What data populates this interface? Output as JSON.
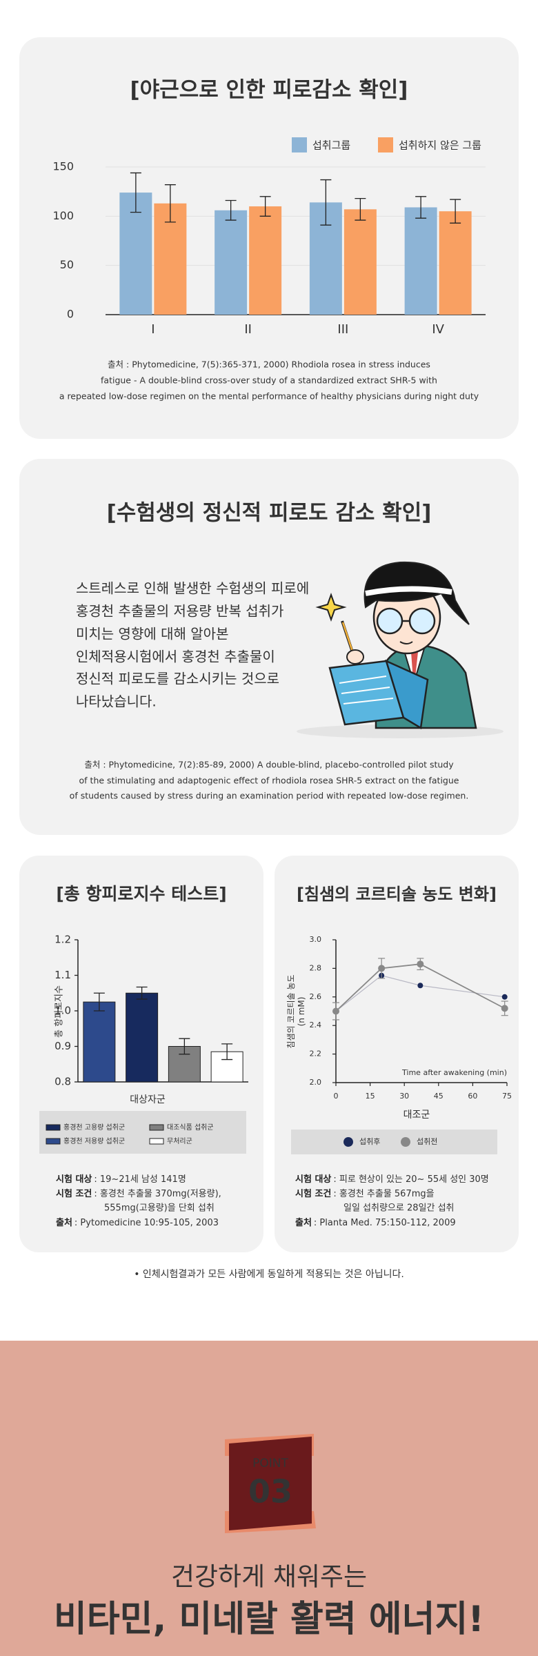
{
  "chart_data": [
    {
      "type": "bar",
      "title": "[야근으로 인한 피로감소 확인]",
      "categories": [
        "I",
        "II",
        "III",
        "IV"
      ],
      "series": [
        {
          "name": "섭취그룹",
          "color": "#8db4d6",
          "values": [
            124,
            106,
            114,
            109
          ],
          "errors": [
            20,
            10,
            23,
            11
          ]
        },
        {
          "name": "섭취하지 않은 그룹",
          "color": "#f9a062",
          "values": [
            113,
            110,
            107,
            105
          ],
          "errors": [
            19,
            10,
            11,
            12
          ]
        }
      ],
      "ylim": [
        0,
        150
      ],
      "yticks": [
        0,
        50,
        100,
        150
      ],
      "grid": true
    },
    {
      "type": "bar",
      "title": "[총 항피로지수 테스트]",
      "y_label": "총 항피로지수",
      "x_label": "대상자군",
      "series": [
        {
          "name": "홍경천 저용량 섭취군",
          "color": "#2d4a8c",
          "values": [
            1.025
          ],
          "errors": [
            0.025
          ]
        },
        {
          "name": "홍경천 고용량 섭취군",
          "color": "#172a5e",
          "values": [
            1.05
          ],
          "errors": [
            0.017
          ]
        },
        {
          "name": "대조식품 섭취군",
          "color": "#808080",
          "values": [
            0.9
          ],
          "errors": [
            0.022
          ]
        },
        {
          "name": "무처리군",
          "color": "#ffffff",
          "values": [
            0.885
          ],
          "errors": [
            0.022
          ]
        }
      ],
      "ylim": [
        0.8,
        1.2
      ],
      "yticks": [
        0.8,
        0.9,
        {
          "value": 1,
          "label": "1.0"
        },
        1.1,
        1.2
      ]
    },
    {
      "type": "line",
      "title": "[침샘의 코르티솔 농도 변화]",
      "y_label": [
        "침샘의 코르티솔 농도",
        "(n mM)"
      ],
      "x_label": "대조군",
      "annotation": "Time after awakening (min)",
      "xlim": [
        0,
        75
      ],
      "xticks": [
        0,
        15,
        30,
        45,
        60,
        75
      ],
      "ylim": [
        2,
        3
      ],
      "yticks": [
        {
          "value": 2,
          "label": "2.0"
        },
        2.2,
        2.4,
        2.6,
        2.8,
        {
          "value": 3,
          "label": "3.0"
        }
      ],
      "series": [
        {
          "name": "섭취후",
          "color": "#1b2a5a",
          "x": [
            0,
            20,
            37,
            74
          ],
          "values": [
            2.5,
            2.75,
            2.68,
            2.6
          ]
        },
        {
          "name": "섭취전",
          "color": "#888888",
          "x": [
            0,
            20,
            37,
            74
          ],
          "values": [
            2.5,
            2.8,
            2.83,
            2.52
          ],
          "errors": [
            0.06,
            0.07,
            0.04,
            0.05
          ]
        }
      ]
    }
  ],
  "card1": {
    "source": [
      "출처 : Phytomedicine, 7(5):365-371, 2000) Rhodiola rosea in stress induces",
      "fatigue -  A double-blind cross-over study of a standardized extract SHR-5 with",
      "a repeated low-dose regimen on the mental performance of healthy physicians during night duty"
    ]
  },
  "card2": {
    "title": "[수험생의 정신적 피로도 감소 확인]",
    "body": [
      "스트레스로 인해 발생한 수험생의 피로에",
      "홍경천 추출물의 저용량 반복 섭취가",
      "미치는 영향에 대해 알아본",
      "인체적용시험에서 홍경천 추출물이",
      "정신적 피로도를 감소시키는 것으로",
      "나타났습니다."
    ],
    "source": [
      "출처 : Phytomedicine, 7(2):85-89, 2000) A double-blind, placebo-controlled pilot study",
      "of the stimulating and adaptogenic effect of rhodiola rosea SHR-5 extract on the fatigue",
      "of students caused by stress during an examination period with repeated low-dose regimen."
    ]
  },
  "card3": {
    "info": [
      {
        "label": "시험 대상",
        "lines": [
          ": 19~21세 남성 141명"
        ]
      },
      {
        "label": "시험 조건",
        "lines": [
          ": 홍경천 추출물 370mg(저용량),",
          "555mg(고용량)을 단회 섭취"
        ]
      },
      {
        "label": "출처",
        "lines": [
          ": Pytomedicine 10:95-105, 2003"
        ]
      }
    ]
  },
  "card4": {
    "info": [
      {
        "label": "시험 대상",
        "lines": [
          ": 피로 현상이 있는 20~ 55세 성인 30명"
        ]
      },
      {
        "label": "시험 조건",
        "lines": [
          ": 홍경천 추출물 567mg을",
          "일일 섭취량으로 28일간 섭취"
        ]
      },
      {
        "label": "출처",
        "lines": [
          ": Planta Med. 75:150-112, 2009"
        ]
      }
    ]
  },
  "disclaimer": "• 인체시험결과가 모든 사람에게 동일하게 적용되는 것은 아닙니다.",
  "point": {
    "label": "POINT",
    "number": "03",
    "subtitle": "건강하게 채워주는",
    "headline": "비타민, 미네랄 활력 에너지!"
  }
}
